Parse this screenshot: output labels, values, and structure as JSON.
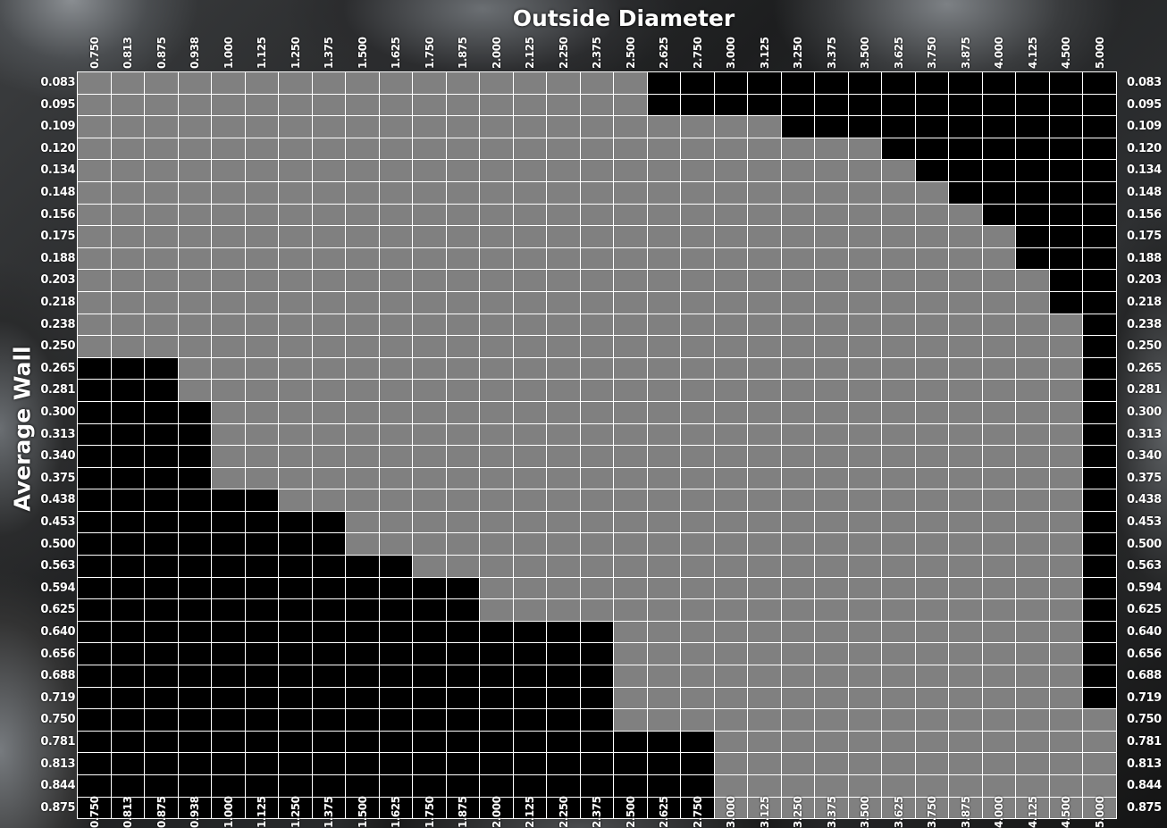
{
  "chart_data": {
    "type": "heatmap",
    "title": "Outside Diameter",
    "xlabel": "Outside Diameter",
    "ylabel": "Average Wall",
    "x": [
      "0.750",
      "0.813",
      "0.875",
      "0.938",
      "1.000",
      "1.125",
      "1.250",
      "1.375",
      "1.500",
      "1.625",
      "1.750",
      "1.875",
      "2.000",
      "2.125",
      "2.250",
      "2.375",
      "2.500",
      "2.625",
      "2.750",
      "3.000",
      "3.125",
      "3.250",
      "3.375",
      "3.500",
      "3.625",
      "3.750",
      "3.875",
      "4.000",
      "4.125",
      "4.500",
      "5.000"
    ],
    "y": [
      "0.083",
      "0.095",
      "0.109",
      "0.120",
      "0.134",
      "0.148",
      "0.156",
      "0.175",
      "0.188",
      "0.203",
      "0.218",
      "0.238",
      "0.250",
      "0.265",
      "0.281",
      "0.300",
      "0.313",
      "0.340",
      "0.375",
      "0.438",
      "0.453",
      "0.500",
      "0.563",
      "0.594",
      "0.625",
      "0.640",
      "0.656",
      "0.688",
      "0.719",
      "0.750",
      "0.781",
      "0.813",
      "0.844",
      "0.875"
    ],
    "top_black_from_col": [
      17,
      17,
      21,
      24,
      25,
      26,
      27,
      28,
      28,
      29,
      29,
      30,
      30,
      30,
      30,
      30,
      30,
      30,
      30,
      30,
      30,
      30,
      30,
      30,
      30,
      30,
      30,
      30,
      30,
      31,
      31,
      31,
      31,
      31
    ],
    "bottom_black_to_col": [
      0,
      0,
      0,
      0,
      0,
      0,
      0,
      0,
      0,
      0,
      0,
      0,
      0,
      3,
      3,
      4,
      4,
      4,
      4,
      6,
      8,
      8,
      10,
      12,
      12,
      16,
      16,
      16,
      16,
      16,
      19,
      19,
      19,
      19
    ],
    "colors": {
      "gray": "#808080",
      "black": "#000000",
      "grid": "#ffffff"
    },
    "grid": true
  }
}
